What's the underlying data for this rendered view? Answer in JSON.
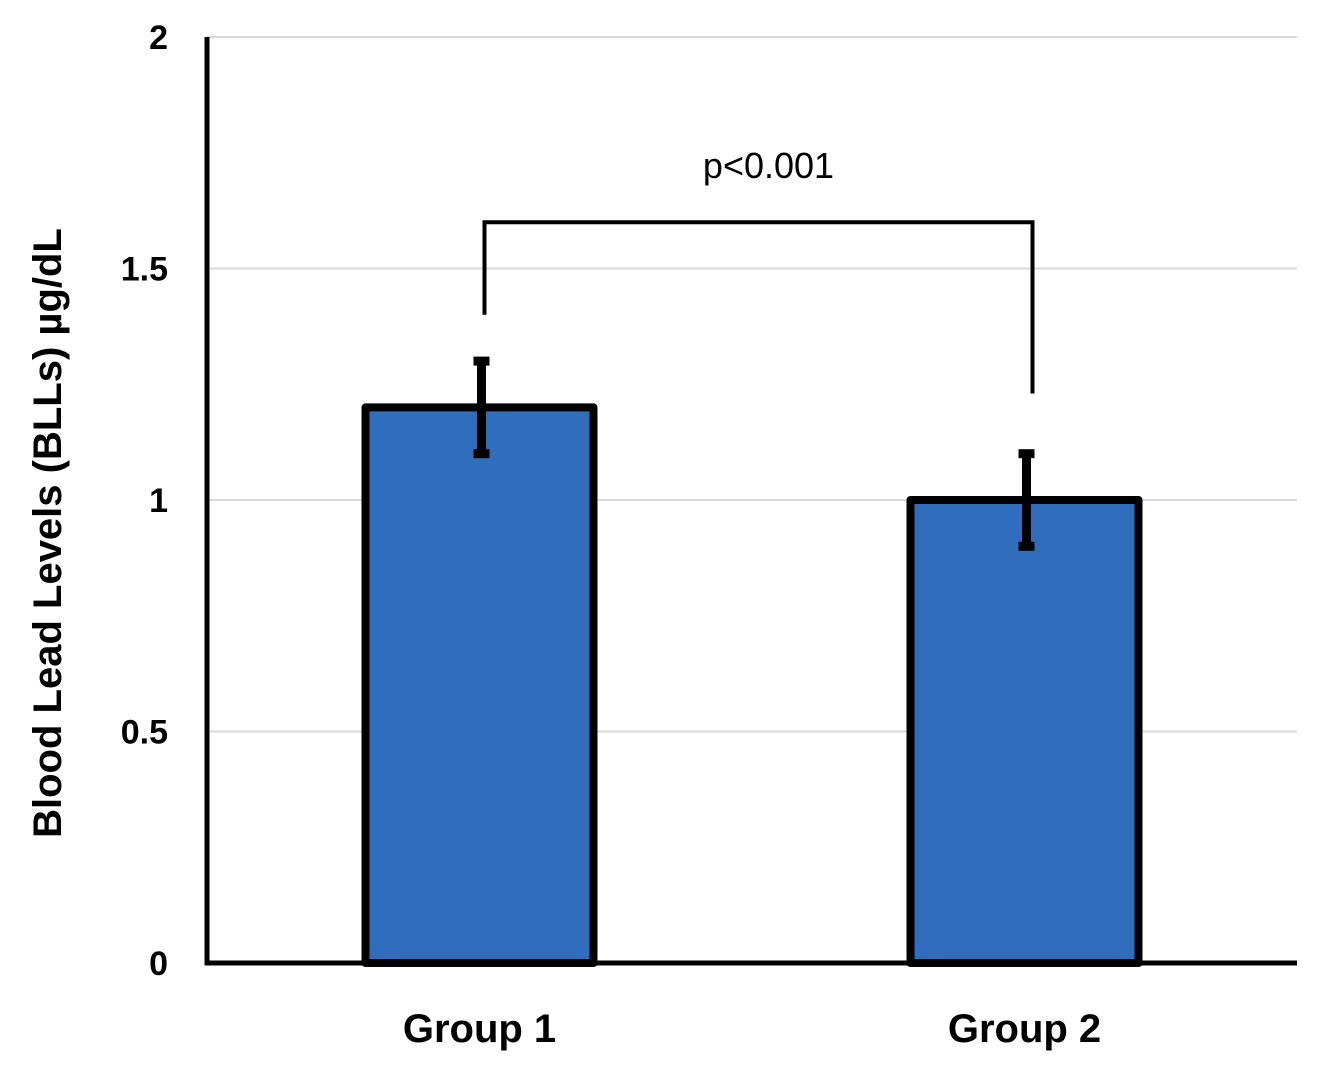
{
  "chart_data": {
    "type": "bar",
    "categories": [
      "Group 1",
      "Group 2"
    ],
    "values": [
      1.2,
      1.0
    ],
    "error": [
      0.1,
      0.1
    ],
    "ylabel": "Blood Lead Levels (BLLs) µg/dL",
    "xlabel": "",
    "ylim": [
      0,
      2
    ],
    "yticks": [
      0,
      0.5,
      1,
      1.5,
      2
    ],
    "ytick_labels": [
      "0",
      "0.5",
      "1",
      "1.5",
      "2"
    ],
    "grid": "horizontal",
    "bar_color": "#306EBD",
    "edge_color": "#000000",
    "annotation": {
      "text": "p<0.001",
      "between": [
        "Group 1",
        "Group 2"
      ],
      "bracket_level": 1.6,
      "left_leg_bottom": 1.4,
      "right_leg_bottom": 1.23
    }
  }
}
